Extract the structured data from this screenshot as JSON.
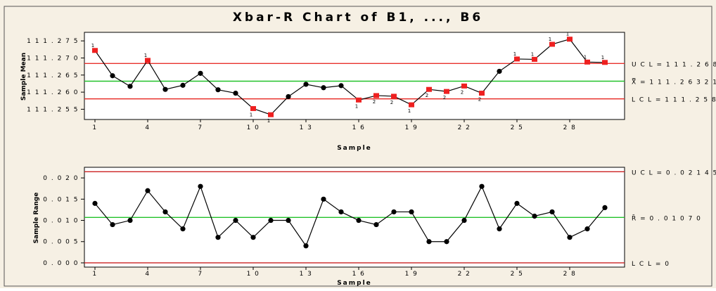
{
  "chart_data": [
    {
      "type": "line",
      "title": "Xbar-R Chart of B1, ..., B6",
      "xlabel": "Sample",
      "ylabel": "Sample Mean",
      "xticks": [
        1,
        4,
        7,
        10,
        13,
        16,
        19,
        22,
        25,
        28
      ],
      "yticks": [
        "111.255",
        "111.260",
        "111.265",
        "111.270",
        "111.275"
      ],
      "ylim": [
        111.252,
        111.2775
      ],
      "x": [
        1,
        2,
        3,
        4,
        5,
        6,
        7,
        8,
        9,
        10,
        11,
        12,
        13,
        14,
        15,
        16,
        17,
        18,
        19,
        20,
        21,
        22,
        23,
        24,
        25,
        26,
        27,
        28,
        29,
        30
      ],
      "values": [
        111.2722,
        111.2648,
        111.2617,
        111.2693,
        111.2608,
        111.262,
        111.2655,
        111.2607,
        111.2597,
        111.2552,
        111.2534,
        111.2587,
        111.2623,
        111.2613,
        111.2619,
        111.2577,
        111.259,
        111.2588,
        111.2563,
        111.2608,
        111.2602,
        111.2618,
        111.2597,
        111.2661,
        111.2697,
        111.2696,
        111.274,
        111.2755,
        111.2688,
        111.2687
      ],
      "flags": [
        "1",
        "",
        "",
        "1",
        "",
        "",
        "",
        "",
        "",
        "1",
        "1",
        "",
        "",
        "",
        "",
        "1",
        "2",
        "2",
        "1",
        "2",
        "2",
        "2",
        "2",
        "",
        "1",
        "1",
        "1",
        "1",
        "1",
        "1"
      ],
      "limits": {
        "ucl": 111.26838,
        "center": 111.26321,
        "lcl": 111.25804
      },
      "limit_labels": {
        "ucl": "U C L = 1 1 1 . 2 6 8 3 8",
        "center": "X̿ = 1 1 1 . 2 6 3 2 1",
        "lcl": "L C L = 1 1 1 . 2 5 8 0 4"
      },
      "colors": {
        "limit": "#e8312c",
        "center": "#22c22a",
        "line": "#000000",
        "flagged": "#ee2020",
        "point": "#000000"
      }
    },
    {
      "type": "line",
      "xlabel": "Sample",
      "ylabel": "Sample Range",
      "xticks": [
        1,
        4,
        7,
        10,
        13,
        16,
        19,
        22,
        25,
        28
      ],
      "yticks": [
        "0.000",
        "0.005",
        "0.010",
        "0.015",
        "0.020"
      ],
      "ylim": [
        -0.001,
        0.0225
      ],
      "x": [
        1,
        2,
        3,
        4,
        5,
        6,
        7,
        8,
        9,
        10,
        11,
        12,
        13,
        14,
        15,
        16,
        17,
        18,
        19,
        20,
        21,
        22,
        23,
        24,
        25,
        26,
        27,
        28,
        29,
        30
      ],
      "values": [
        0.014,
        0.009,
        0.01,
        0.017,
        0.012,
        0.008,
        0.018,
        0.006,
        0.01,
        0.006,
        0.01,
        0.01,
        0.004,
        0.015,
        0.012,
        0.01,
        0.009,
        0.012,
        0.012,
        0.005,
        0.005,
        0.01,
        0.018,
        0.008,
        0.014,
        0.011,
        0.012,
        0.006,
        0.008,
        0.013
      ],
      "limits": {
        "ucl": 0.02145,
        "center": 0.0107,
        "lcl": 0
      },
      "limit_labels": {
        "ucl": "U C L = 0 . 0 2 1 4 5",
        "center": "R̄ = 0 . 0 1 0 7 0",
        "lcl": "L C L = 0"
      },
      "colors": {
        "limit": "#cc2222",
        "center": "#22c22a",
        "line": "#000000",
        "point": "#000000"
      }
    }
  ]
}
